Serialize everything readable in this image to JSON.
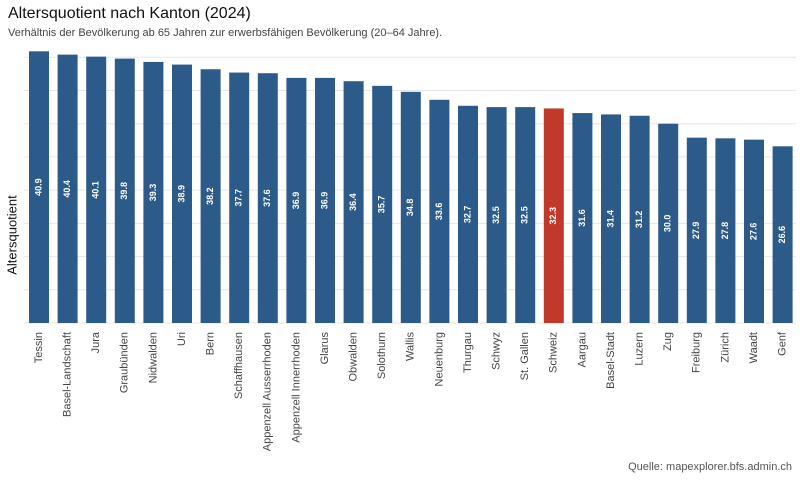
{
  "chart_data": {
    "type": "bar",
    "title": "Altersquotient nach Kanton (2024)",
    "subtitle": "Verhältnis der Bevölkerung ab 65 Jahren zur erwerbsfähigen Bevölkerung (20–64 Jahre).",
    "xlabel": "",
    "ylabel": "Altersquotient",
    "ylim": [
      0,
      42
    ],
    "grid": true,
    "y_ticks_shown": false,
    "categories": [
      "Tessin",
      "Basel-Landschaft",
      "Jura",
      "Graubünden",
      "Nidwalden",
      "Uri",
      "Bern",
      "Schaffhausen",
      "Appenzell Ausserrhoden",
      "Appenzell Innerrhoden",
      "Glarus",
      "Obwalden",
      "Solothurn",
      "Wallis",
      "Neuenburg",
      "Thurgau",
      "Schwyz",
      "St. Gallen",
      "Schweiz",
      "Aargau",
      "Basel-Stadt",
      "Luzern",
      "Zug",
      "Freiburg",
      "Zürich",
      "Waadt",
      "Genf"
    ],
    "values": [
      40.9,
      40.4,
      40.1,
      39.8,
      39.3,
      38.9,
      38.2,
      37.7,
      37.6,
      36.9,
      36.9,
      36.4,
      35.7,
      34.8,
      33.6,
      32.7,
      32.5,
      32.5,
      32.3,
      31.6,
      31.4,
      31.2,
      30.0,
      27.9,
      27.8,
      27.6,
      26.6
    ],
    "value_labels": [
      "40.9",
      "40.4",
      "40.1",
      "39.8",
      "39.3",
      "38.9",
      "38.2",
      "37.7",
      "37.6",
      "36.9",
      "36.9",
      "36.4",
      "35.7",
      "34.8",
      "33.6",
      "32.7",
      "32.5",
      "32.5",
      "32.3",
      "31.6",
      "31.4",
      "31.2",
      "30.0",
      "27.9",
      "27.8",
      "27.6",
      "26.6"
    ],
    "highlight": "Schweiz",
    "colors": {
      "bar": "#2c5b8a",
      "highlight": "#c0392b",
      "grid": "#e6e6e6"
    },
    "source": "Quelle: mapexplorer.bfs.admin.ch"
  }
}
